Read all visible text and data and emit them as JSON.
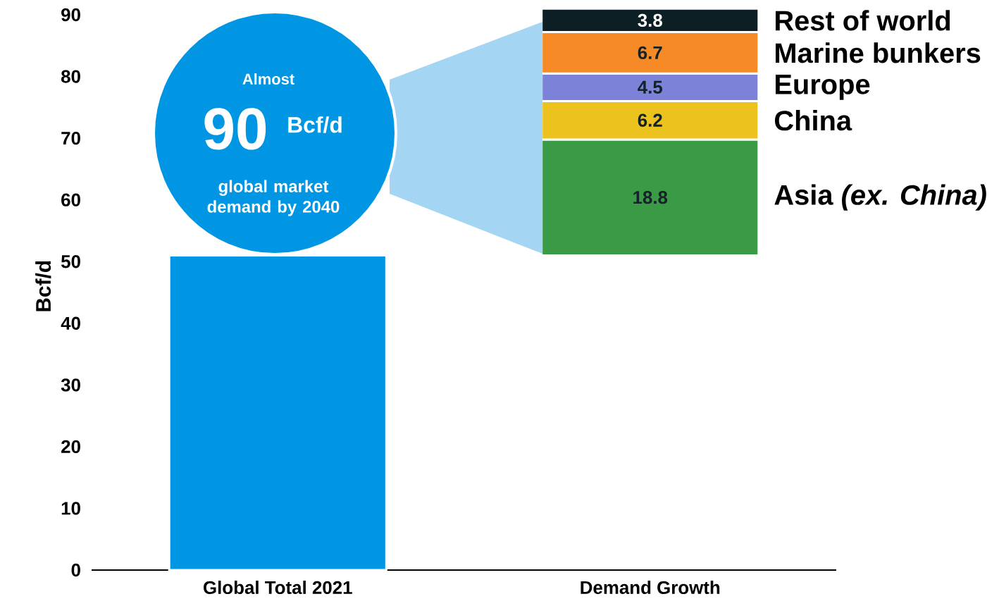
{
  "chart_data": {
    "type": "bar",
    "ylabel": "Bcf/d",
    "categories": [
      "Global Total 2021",
      "Demand Growth"
    ],
    "ylim": [
      0,
      92
    ],
    "yticks": [
      0,
      10,
      20,
      30,
      40,
      50,
      60,
      70,
      80,
      90
    ],
    "series": [
      {
        "color": "#0096e3",
        "values": [
          51,
          null
        ]
      },
      {
        "name": "Asia *(ex. China)*",
        "color": "#3a9a46",
        "base": [
          null,
          51
        ],
        "values": [
          null,
          18.8
        ],
        "value_labels": [
          null,
          "18.8"
        ]
      },
      {
        "name": "China",
        "color": "#ecc21f",
        "base": [
          null,
          69.8
        ],
        "values": [
          null,
          6.2
        ],
        "value_labels": [
          null,
          "6.2"
        ]
      },
      {
        "name": "Europe",
        "color": "#7d82d9",
        "base": [
          null,
          76
        ],
        "values": [
          null,
          4.5
        ],
        "value_labels": [
          null,
          "4.5"
        ]
      },
      {
        "name": "Marine bunkers",
        "color": "#f58a26",
        "base": [
          null,
          80.5
        ],
        "values": [
          null,
          6.7
        ],
        "value_labels": [
          null,
          "6.7"
        ]
      },
      {
        "name": "Rest of world",
        "color": "#0c1f25",
        "base": [
          null,
          87.2
        ],
        "values": [
          null,
          3.8
        ],
        "value_labels": [
          null,
          "3.8"
        ]
      }
    ],
    "annotations": [
      "Almost",
      "90",
      "Bcf/d",
      "global market demand by 2040"
    ]
  }
}
